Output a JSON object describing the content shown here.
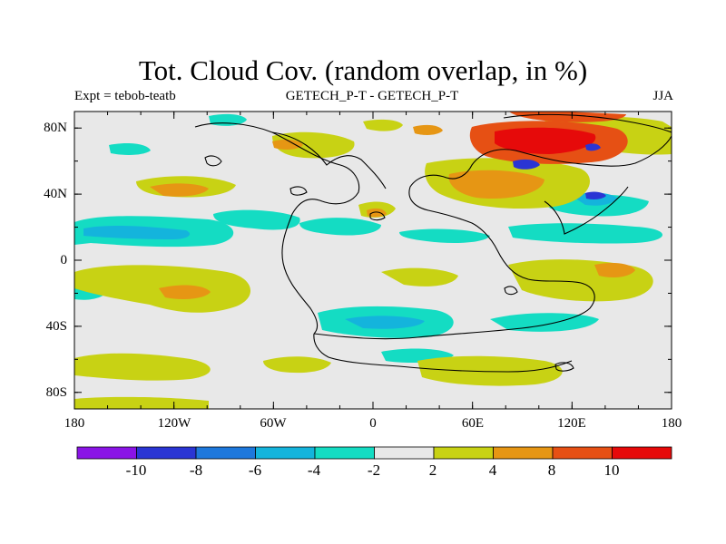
{
  "header": {
    "title": "Tot. Cloud Cov. (random overlap, in %)",
    "left": "Expt = tebob-teatb",
    "center": "GETECH_P-T - GETECH_P-T",
    "right": "JJA"
  },
  "map": {
    "background_color": "#e8e8e8",
    "coast_color": "#000000",
    "x_ticks": [
      "180",
      "120W",
      "60W",
      "0",
      "60E",
      "120E",
      "180"
    ],
    "y_ticks": [
      "80N",
      "40N",
      "0",
      "40S",
      "80S"
    ],
    "lon_range": [
      -180,
      180
    ],
    "lat_range": [
      -90,
      90
    ]
  },
  "colorbar": {
    "colors": [
      "#8a14e6",
      "#2a35d4",
      "#1e78dc",
      "#14b4dc",
      "#14dcc3",
      "#e8e8e8",
      "#c8d214",
      "#e69614",
      "#e65014",
      "#e60a0a"
    ],
    "labels": [
      "-10",
      "-8",
      "-6",
      "-4",
      "-2",
      "2",
      "4",
      "8",
      "10"
    ]
  }
}
